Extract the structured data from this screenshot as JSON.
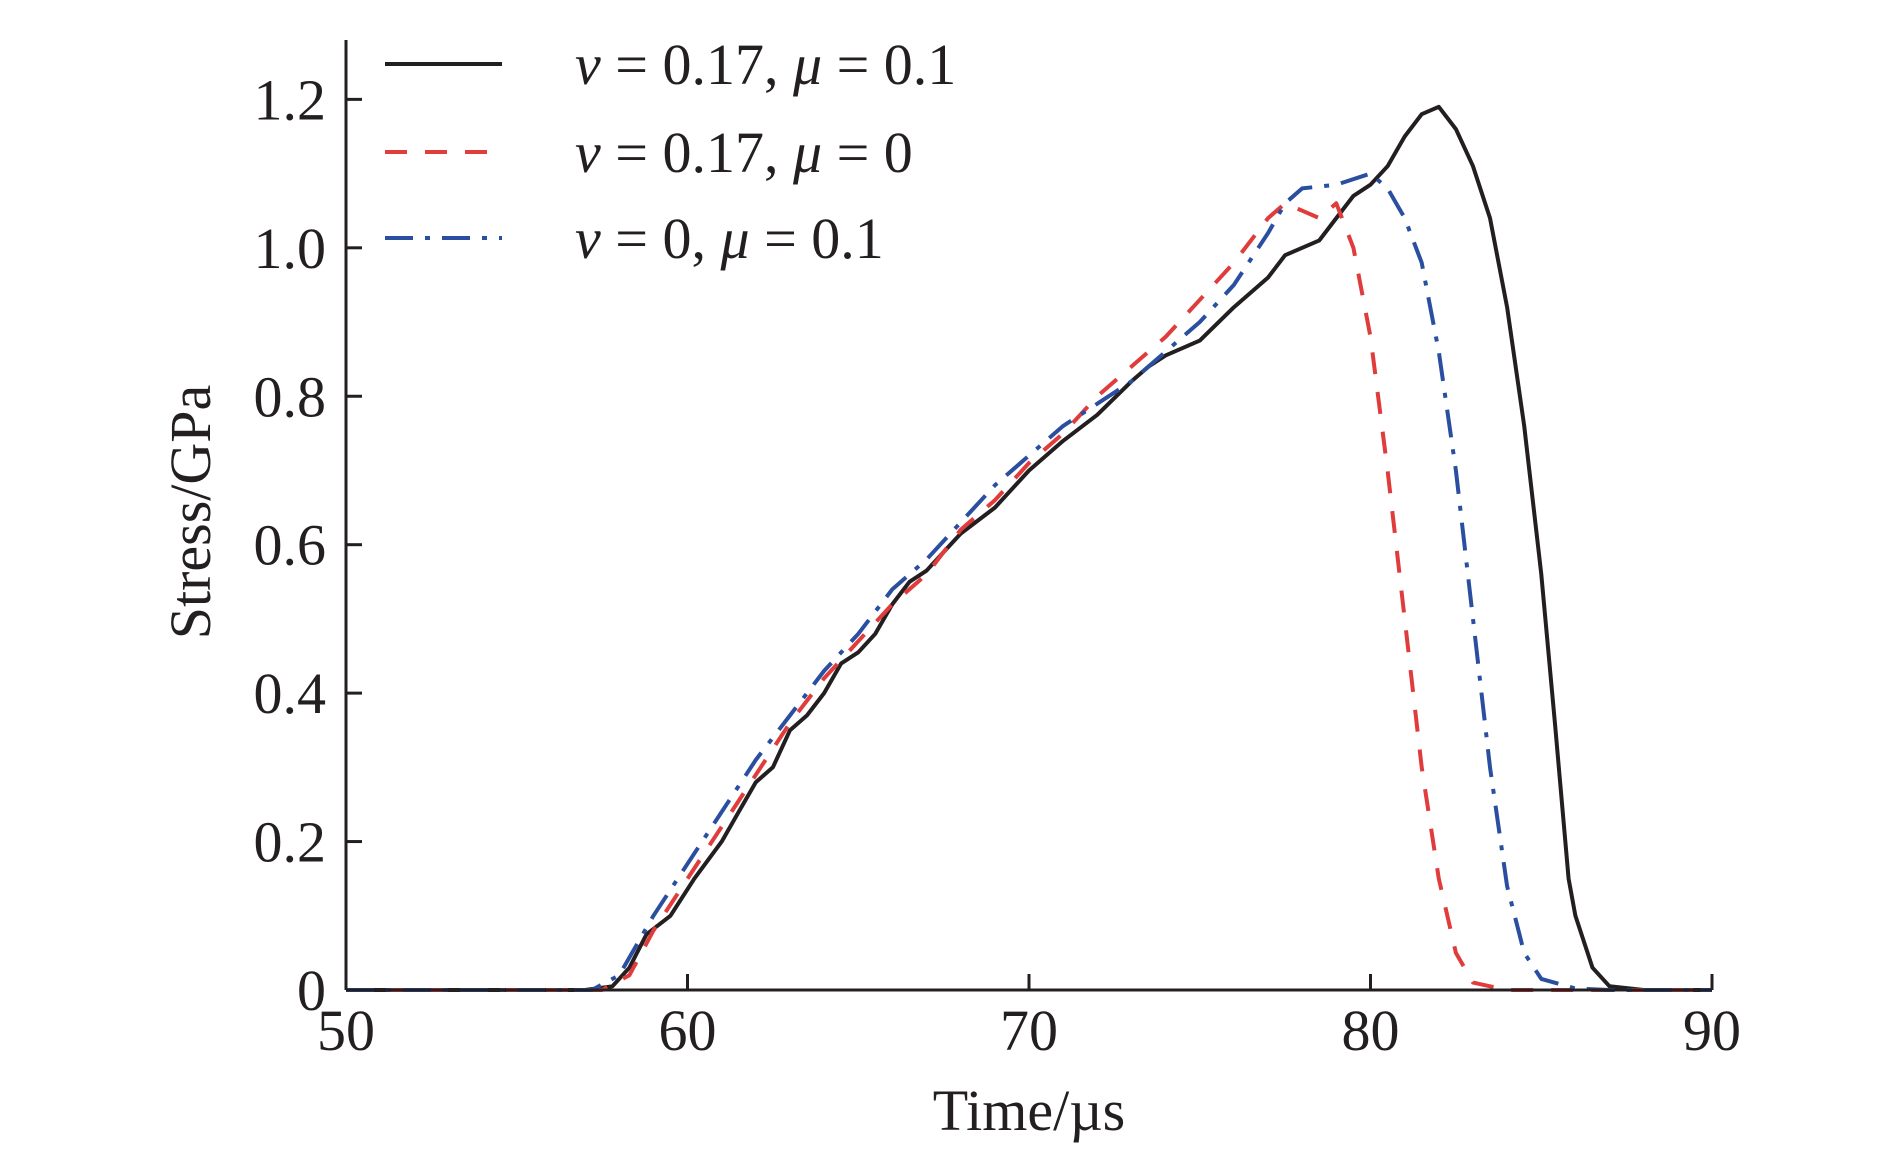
{
  "chart_data": {
    "type": "line",
    "title": "",
    "xlabel": "Time/µs",
    "ylabel": "Stress/GPa",
    "xlim": [
      50,
      90
    ],
    "ylim": [
      0,
      1.28
    ],
    "x_ticks": [
      50,
      60,
      70,
      80,
      90
    ],
    "x_tick_labels": [
      "50",
      "60",
      "70",
      "80",
      "90"
    ],
    "y_ticks": [
      0,
      0.2,
      0.4,
      0.6,
      0.8,
      1.0,
      1.2
    ],
    "y_tick_labels": [
      "0",
      "0.2",
      "0.4",
      "0.6",
      "0.8",
      "1.0",
      "1.2"
    ],
    "grid": false,
    "legend_position": "top-left",
    "series": [
      {
        "legend": {
          "var1": "v",
          "eq1": " = 0.17, ",
          "var2": "μ",
          "eq2": " = 0.1"
        },
        "color": "#231f20",
        "dash": "solid",
        "points": [
          [
            50,
            0
          ],
          [
            57,
            0
          ],
          [
            57.8,
            0.005
          ],
          [
            58.3,
            0.03
          ],
          [
            58.8,
            0.075
          ],
          [
            59.5,
            0.1
          ],
          [
            60.2,
            0.15
          ],
          [
            61,
            0.2
          ],
          [
            61.5,
            0.24
          ],
          [
            62,
            0.28
          ],
          [
            62.5,
            0.3
          ],
          [
            63,
            0.35
          ],
          [
            63.5,
            0.37
          ],
          [
            64,
            0.4
          ],
          [
            64.5,
            0.44
          ],
          [
            65,
            0.455
          ],
          [
            65.5,
            0.48
          ],
          [
            66,
            0.52
          ],
          [
            66.5,
            0.55
          ],
          [
            67,
            0.565
          ],
          [
            67.5,
            0.59
          ],
          [
            68,
            0.615
          ],
          [
            69,
            0.65
          ],
          [
            70,
            0.7
          ],
          [
            71,
            0.74
          ],
          [
            72,
            0.775
          ],
          [
            73,
            0.82
          ],
          [
            73.5,
            0.84
          ],
          [
            74,
            0.855
          ],
          [
            75,
            0.875
          ],
          [
            76,
            0.92
          ],
          [
            77,
            0.96
          ],
          [
            77.5,
            0.99
          ],
          [
            78,
            1.0
          ],
          [
            78.5,
            1.01
          ],
          [
            79,
            1.04
          ],
          [
            79.5,
            1.07
          ],
          [
            80,
            1.085
          ],
          [
            80.5,
            1.11
          ],
          [
            81,
            1.15
          ],
          [
            81.5,
            1.18
          ],
          [
            82,
            1.19
          ],
          [
            82.5,
            1.16
          ],
          [
            83,
            1.11
          ],
          [
            83.5,
            1.04
          ],
          [
            84,
            0.92
          ],
          [
            84.5,
            0.76
          ],
          [
            85,
            0.56
          ],
          [
            85.4,
            0.36
          ],
          [
            85.8,
            0.15
          ],
          [
            86,
            0.1
          ],
          [
            86.5,
            0.03
          ],
          [
            87,
            0.005
          ],
          [
            88,
            0
          ],
          [
            90,
            0
          ]
        ]
      },
      {
        "legend": {
          "var1": "v",
          "eq1": " = 0.17, ",
          "var2": "μ",
          "eq2": " = 0"
        },
        "color": "#e03c3c",
        "dash": "22,18",
        "points": [
          [
            50,
            0
          ],
          [
            57.5,
            0
          ],
          [
            58.3,
            0.02
          ],
          [
            59,
            0.08
          ],
          [
            60,
            0.15
          ],
          [
            61,
            0.22
          ],
          [
            62,
            0.29
          ],
          [
            63,
            0.36
          ],
          [
            64,
            0.42
          ],
          [
            65,
            0.47
          ],
          [
            66,
            0.52
          ],
          [
            67,
            0.56
          ],
          [
            68,
            0.62
          ],
          [
            69,
            0.66
          ],
          [
            70,
            0.71
          ],
          [
            71,
            0.75
          ],
          [
            72,
            0.8
          ],
          [
            73,
            0.84
          ],
          [
            74,
            0.88
          ],
          [
            75,
            0.93
          ],
          [
            76,
            0.98
          ],
          [
            77,
            1.04
          ],
          [
            77.5,
            1.06
          ],
          [
            78,
            1.05
          ],
          [
            78.5,
            1.04
          ],
          [
            79,
            1.06
          ],
          [
            79.5,
            1.0
          ],
          [
            80,
            0.88
          ],
          [
            80.5,
            0.7
          ],
          [
            81,
            0.5
          ],
          [
            81.5,
            0.3
          ],
          [
            82,
            0.15
          ],
          [
            82.5,
            0.05
          ],
          [
            83,
            0.01
          ],
          [
            84,
            0
          ],
          [
            90,
            0
          ]
        ]
      },
      {
        "legend": {
          "var1": "v",
          "eq1": " = 0, ",
          "var2": "μ",
          "eq2": " = 0.1"
        },
        "color": "#2a4fa0",
        "dash": "28,12,5,12",
        "points": [
          [
            50,
            0
          ],
          [
            57.2,
            0
          ],
          [
            58,
            0.02
          ],
          [
            59,
            0.1
          ],
          [
            60,
            0.17
          ],
          [
            61,
            0.24
          ],
          [
            62,
            0.31
          ],
          [
            63,
            0.37
          ],
          [
            64,
            0.43
          ],
          [
            65,
            0.48
          ],
          [
            66,
            0.54
          ],
          [
            67,
            0.58
          ],
          [
            68,
            0.63
          ],
          [
            69,
            0.68
          ],
          [
            70,
            0.72
          ],
          [
            71,
            0.76
          ],
          [
            72,
            0.79
          ],
          [
            73,
            0.82
          ],
          [
            74,
            0.86
          ],
          [
            75,
            0.9
          ],
          [
            76,
            0.95
          ],
          [
            77,
            1.02
          ],
          [
            77.5,
            1.06
          ],
          [
            78,
            1.08
          ],
          [
            79,
            1.085
          ],
          [
            80,
            1.1
          ],
          [
            80.5,
            1.08
          ],
          [
            81,
            1.04
          ],
          [
            81.5,
            0.98
          ],
          [
            82,
            0.86
          ],
          [
            82.5,
            0.7
          ],
          [
            83,
            0.5
          ],
          [
            83.5,
            0.3
          ],
          [
            84,
            0.14
          ],
          [
            84.5,
            0.05
          ],
          [
            85,
            0.015
          ],
          [
            86,
            0.002
          ],
          [
            87,
            0
          ],
          [
            90,
            0
          ]
        ]
      }
    ]
  }
}
